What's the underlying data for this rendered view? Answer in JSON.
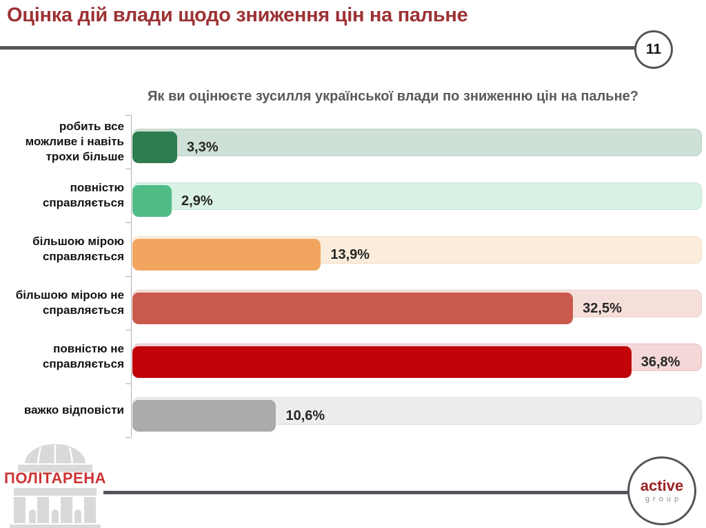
{
  "slide": {
    "title": "Оцінка дій влади щодо зниження цін на пальне",
    "page_number": "11"
  },
  "chart_data": {
    "type": "bar",
    "orientation": "horizontal",
    "title": "Як ви оцінюєте зусилля української влади по зниженню цін на пальне?",
    "categories": [
      "робить все можливе і навіть трохи більше",
      "повністю справляється",
      "більшою мірою справляється",
      "більшою мірою не справляється",
      "повністю не справляється",
      "важко відповісти"
    ],
    "label_lines": [
      "робить все\nможливе і навіть\nтрохи більше",
      "повністю\nсправляється",
      "більшою мірою\nсправляється",
      "більшою мірою не\nсправляється",
      "повністю не\nсправляється",
      "важко відповісти"
    ],
    "values": [
      3.3,
      2.9,
      13.9,
      32.5,
      36.8,
      10.6
    ],
    "value_labels": [
      "3,3%",
      "2,9%",
      "13,9%",
      "32,5%",
      "36,8%",
      "10,6%"
    ],
    "bar_colors": [
      "#2e7d50",
      "#4fbc86",
      "#f2a55f",
      "#c95a4d",
      "#c00408",
      "#ababab"
    ],
    "track_colors": [
      "#cfe0d6",
      "#daf1e5",
      "#fcecdb",
      "#f6dfdb",
      "#f3d8d7",
      "#ededed"
    ],
    "track_border_colors": [
      "#b9d0c4",
      "#c4e6d4",
      "#f3dcc1",
      "#edcac4",
      "#e8bfbe",
      "#dbdbdb"
    ],
    "xlim": [
      0,
      42
    ],
    "xlabel": "",
    "ylabel": "",
    "grid": false,
    "legend": false
  },
  "footer": {
    "politarena_label": "ПОЛІТАРЕНА",
    "active_group_name": "active",
    "active_group_subtitle": "group"
  },
  "colors": {
    "slide_title": "#9c3234",
    "divider": "#54555b",
    "chart_title": "#595959",
    "value_text": "#262626",
    "category_text": "#121212",
    "politarena_red": "#ce3434",
    "active_red": "#9b2222",
    "active_gray": "#909090",
    "building_gray": "#d9d9d9"
  }
}
